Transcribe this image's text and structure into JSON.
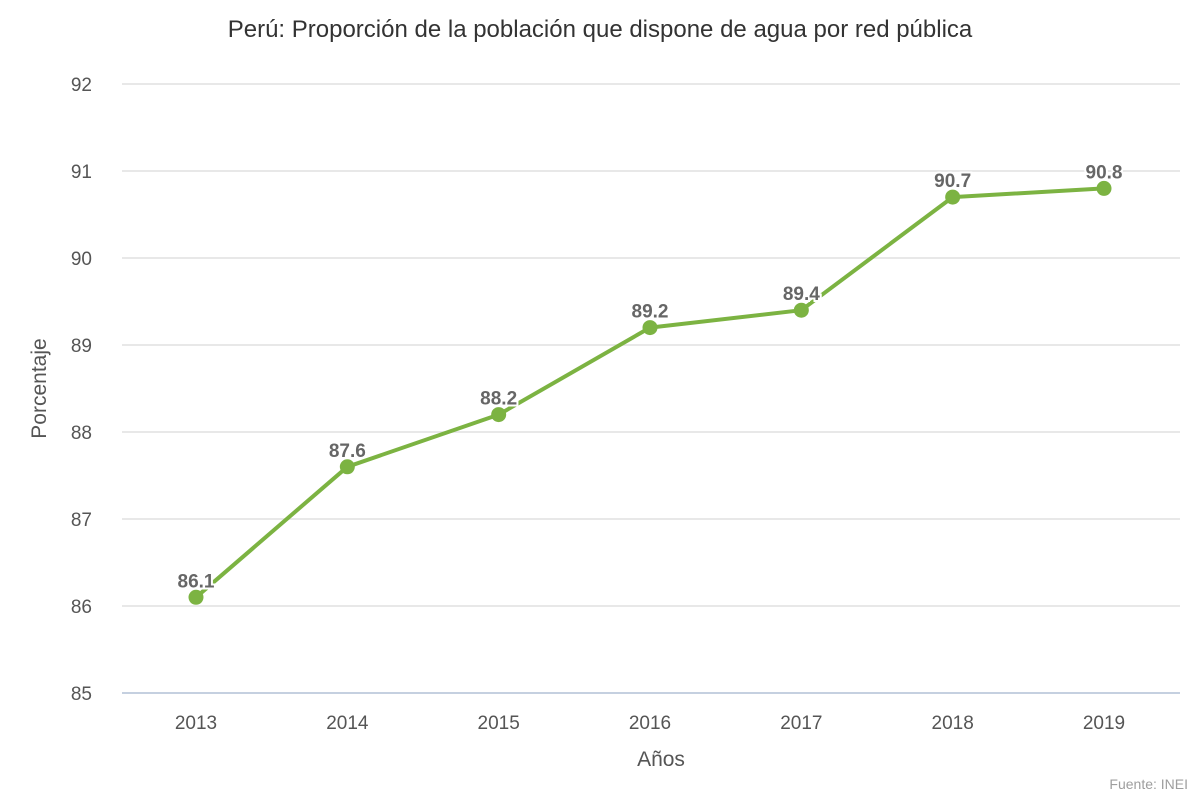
{
  "chart_data": {
    "type": "line",
    "title": "Perú: Proporción de la población que dispone de agua por red pública",
    "xlabel": "Años",
    "ylabel": "Porcentaje",
    "categories": [
      "2013",
      "2014",
      "2015",
      "2016",
      "2017",
      "2018",
      "2019"
    ],
    "series": [
      {
        "values": [
          86.1,
          87.6,
          88.2,
          89.2,
          89.4,
          90.7,
          90.8
        ]
      }
    ],
    "ylim": [
      85,
      92
    ],
    "yticks": [
      "85",
      "86",
      "87",
      "88",
      "89",
      "90",
      "91",
      "92"
    ],
    "data_labels": [
      "86.1",
      "87.6",
      "88.2",
      "89.2",
      "89.4",
      "90.7",
      "90.8"
    ],
    "grid": true,
    "legend": "none",
    "colors": {
      "line": "#7cb342",
      "grid": "#e0e0e0",
      "axis": "#c5d0e0"
    }
  },
  "source": "Fuente: INEI"
}
